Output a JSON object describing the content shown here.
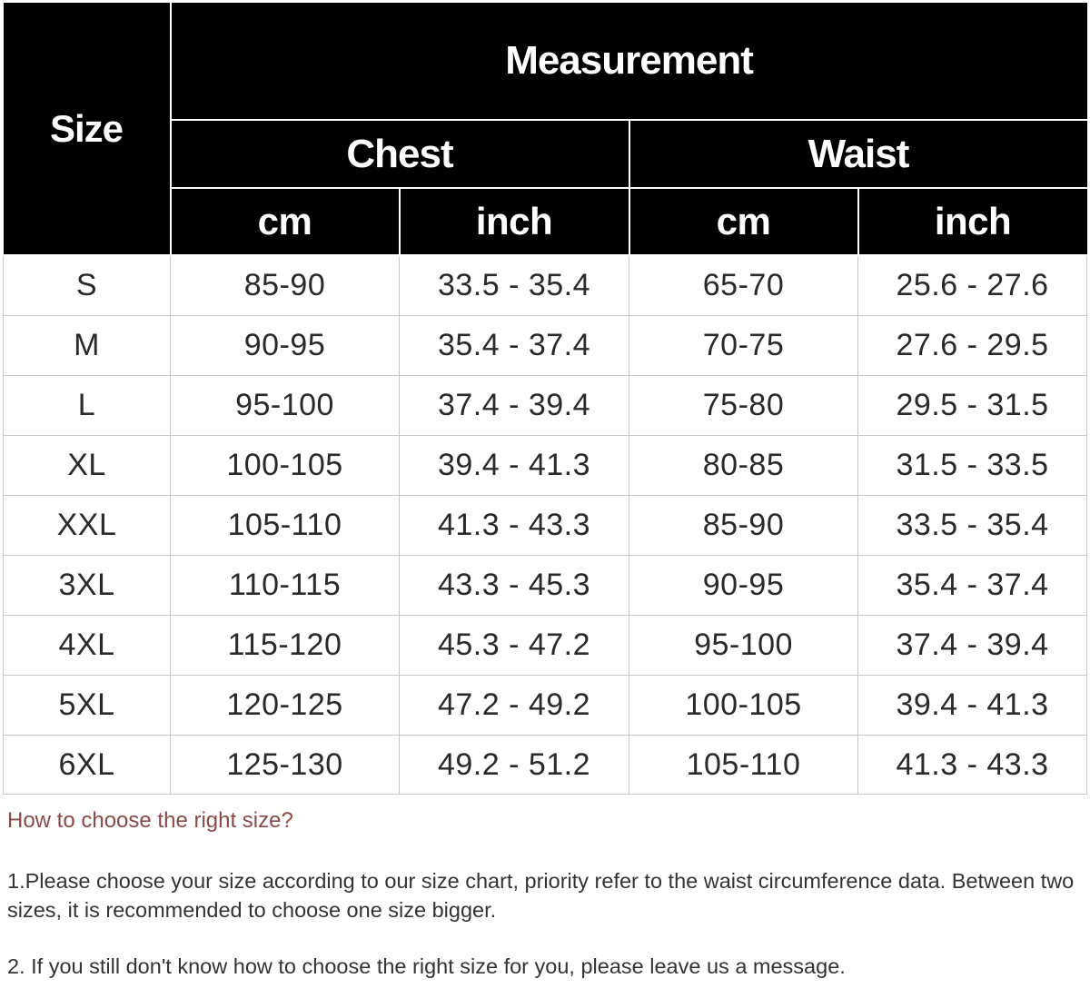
{
  "table": {
    "size_header": "Size",
    "measurement_header": "Measurement",
    "groups": [
      "Chest",
      "Waist"
    ],
    "units": [
      "cm",
      "inch",
      "cm",
      "inch"
    ],
    "rows": [
      [
        "S",
        "85-90",
        "33.5 - 35.4",
        "65-70",
        "25.6 - 27.6"
      ],
      [
        "M",
        "90-95",
        "35.4 - 37.4",
        "70-75",
        "27.6 - 29.5"
      ],
      [
        "L",
        "95-100",
        "37.4 - 39.4",
        "75-80",
        "29.5 - 31.5"
      ],
      [
        "XL",
        "100-105",
        "39.4 - 41.3",
        "80-85",
        "31.5 - 33.5"
      ],
      [
        "XXL",
        "105-110",
        "41.3 - 43.3",
        "85-90",
        "33.5 - 35.4"
      ],
      [
        "3XL",
        "110-115",
        "43.3 - 45.3",
        "90-95",
        "35.4 - 37.4"
      ],
      [
        "4XL",
        "115-120",
        "45.3 - 47.2",
        "95-100",
        "37.4 - 39.4"
      ],
      [
        "5XL",
        "120-125",
        "47.2 - 49.2",
        "100-105",
        "39.4 - 41.3"
      ],
      [
        "6XL",
        "125-130",
        "49.2 - 51.2",
        "105-110",
        "41.3 - 43.3"
      ]
    ]
  },
  "notes": {
    "question": "How to choose the right size?",
    "items": [
      "1.Please choose your size according to our size chart, priority refer to the waist circumference data. Between two sizes, it is recommended to choose one size bigger.",
      "2. If you still don't know how to choose the right size for you, please leave us a message."
    ]
  },
  "colors": {
    "header_bg": "#000000",
    "header_text": "#ffffff",
    "question_text": "#8b4a47"
  }
}
